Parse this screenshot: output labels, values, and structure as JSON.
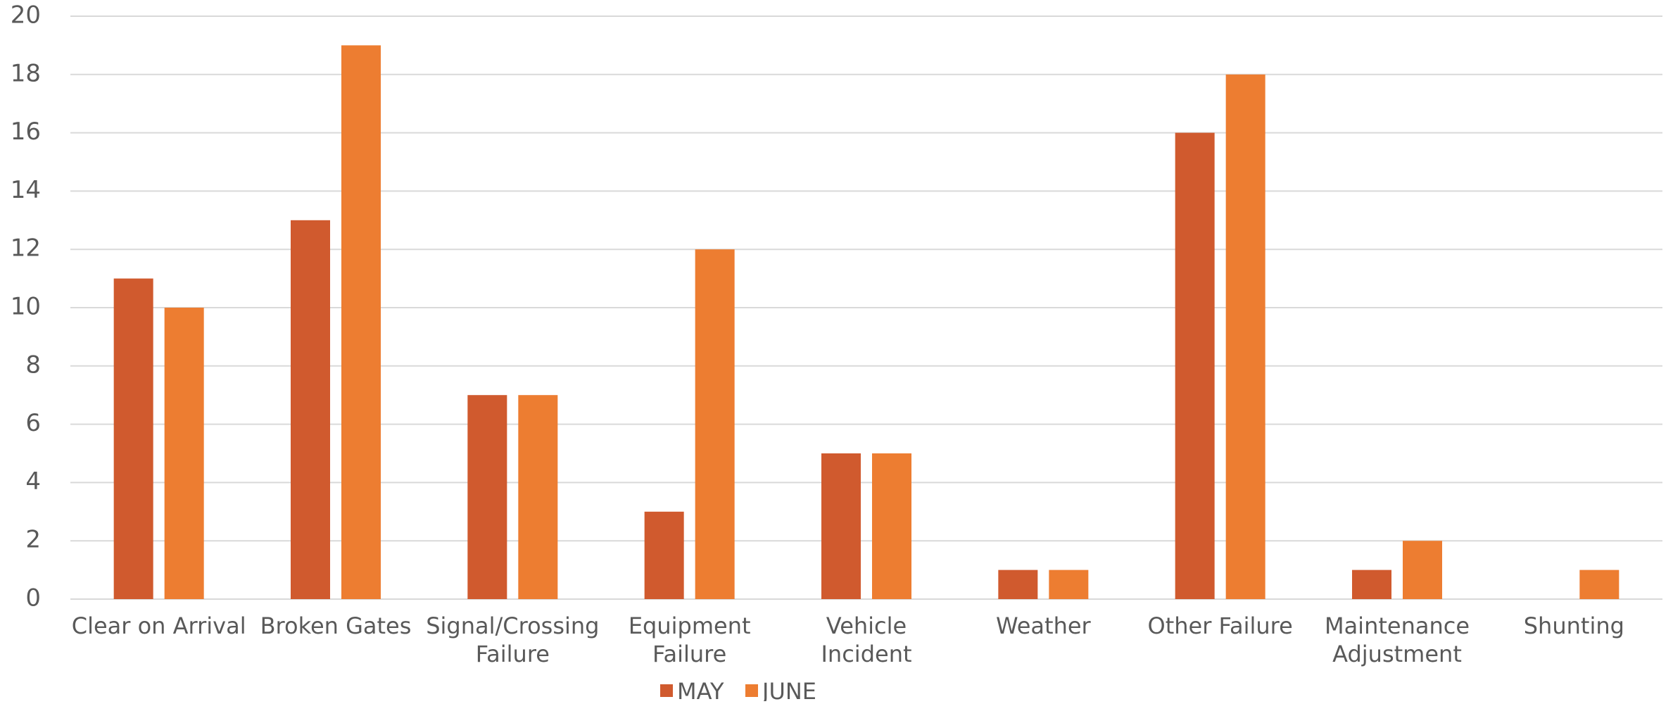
{
  "chart_data": {
    "type": "bar",
    "title": "",
    "xlabel": "",
    "ylabel": "",
    "ylim": [
      0,
      20
    ],
    "y_ticks": [
      0,
      2,
      4,
      6,
      8,
      10,
      12,
      14,
      16,
      18,
      20
    ],
    "grid": true,
    "legend_position": "bottom",
    "categories": [
      [
        "Clear on Arrival"
      ],
      [
        "Broken Gates"
      ],
      [
        "Signal/Crossing",
        "Failure"
      ],
      [
        "Equipment",
        "Failure"
      ],
      [
        "Vehicle",
        "Incident"
      ],
      [
        "Weather"
      ],
      [
        "Other Failure"
      ],
      [
        "Maintenance",
        "Adjustment"
      ],
      [
        "Shunting"
      ]
    ],
    "series": [
      {
        "name": "MAY",
        "color": "#D05A2E",
        "values": [
          11,
          13,
          7,
          3,
          5,
          1,
          16,
          1,
          0
        ]
      },
      {
        "name": "JUNE",
        "color": "#ED7D31",
        "values": [
          10,
          19,
          7,
          12,
          5,
          1,
          18,
          2,
          1
        ]
      }
    ]
  }
}
